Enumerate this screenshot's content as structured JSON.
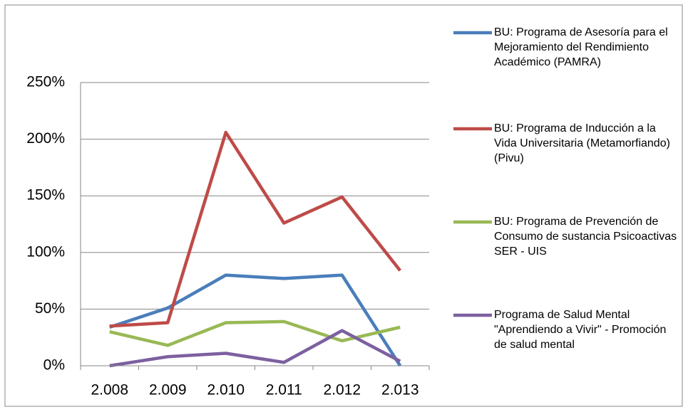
{
  "chart_data": {
    "type": "line",
    "categories": [
      "2.008",
      "2.009",
      "2.010",
      "2.011",
      "2.012",
      "2.013"
    ],
    "series": [
      {
        "name": "BU: Programa de Asesoría para el Mejoramiento del Rendimiento Académico (PAMRA)",
        "color": "#4a7ebb",
        "values": [
          34,
          51,
          80,
          77,
          80,
          0
        ]
      },
      {
        "name": "BU: Programa de Inducción a la Vida Universitaria (Metamorfiando) (Pivu)",
        "color": "#be4b48",
        "values": [
          35,
          38,
          206,
          126,
          149,
          84
        ]
      },
      {
        "name": "BU: Programa de Prevención de Consumo de sustancia Psicoactivas SER - UIS",
        "color": "#98b954",
        "values": [
          30,
          18,
          38,
          39,
          22,
          34
        ]
      },
      {
        "name": "Programa de Salud Mental \"Aprendiendo a Vivir\" - Promoción de salud mental",
        "color": "#7d60a0",
        "values": [
          0,
          8,
          11,
          3,
          31,
          4
        ]
      }
    ],
    "ylim": [
      0,
      250
    ],
    "yticks": [
      {
        "value": 0,
        "label": "0%"
      },
      {
        "value": 50,
        "label": "50%"
      },
      {
        "value": 100,
        "label": "100%"
      },
      {
        "value": 150,
        "label": "150%"
      },
      {
        "value": 200,
        "label": "200%"
      },
      {
        "value": 250,
        "label": "250%"
      }
    ],
    "grid": true
  }
}
